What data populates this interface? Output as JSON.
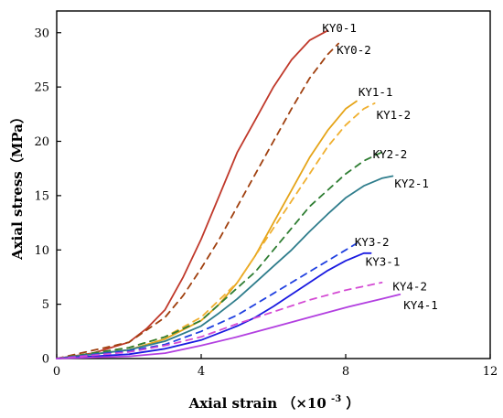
{
  "chart_data": {
    "type": "line",
    "xlabel": "Axial strain",
    "xlabel_unit": "（×10",
    "xlabel_exp": "-3",
    "xlabel_close": "）",
    "ylabel": "Axial stress（MPa）",
    "xlim": [
      0,
      12
    ],
    "ylim": [
      0,
      32
    ],
    "xticks": [
      0,
      4,
      8,
      12
    ],
    "yticks": [
      0,
      5,
      10,
      15,
      20,
      25,
      30
    ],
    "grid": false,
    "legend": "labels at line ends",
    "series": [
      {
        "name": "KY0-1",
        "color": "#c0392b",
        "dash": false,
        "x": [
          0,
          1,
          2,
          2.5,
          3,
          3.5,
          4,
          4.5,
          5,
          5.5,
          6,
          6.5,
          7,
          7.5
        ],
        "y": [
          0,
          0.5,
          1.5,
          2.8,
          4.5,
          7.5,
          11,
          15,
          19,
          22,
          25,
          27.5,
          29.3,
          30.2
        ]
      },
      {
        "name": "KY0-2",
        "color": "#a0400f",
        "dash": true,
        "x": [
          0,
          2,
          3,
          3.5,
          4,
          4.5,
          5,
          5.5,
          6,
          6.5,
          7,
          7.5,
          7.8
        ],
        "y": [
          0,
          1.5,
          3.8,
          5.8,
          8.3,
          11,
          14,
          17,
          20,
          23,
          25.8,
          28,
          29
        ]
      },
      {
        "name": "KY1-1",
        "color": "#e5a418",
        "dash": false,
        "x": [
          0,
          2,
          3,
          4,
          4.5,
          5,
          5.5,
          6,
          6.5,
          7,
          7.5,
          8,
          8.3
        ],
        "y": [
          0,
          0.8,
          1.8,
          3.5,
          5,
          7,
          9.5,
          12.5,
          15.5,
          18.5,
          21,
          23,
          23.7
        ]
      },
      {
        "name": "KY1-2",
        "color": "#f0b030",
        "dash": true,
        "x": [
          0,
          2,
          3,
          4,
          5,
          5.5,
          6,
          6.5,
          7,
          7.5,
          8,
          8.5,
          8.8
        ],
        "y": [
          0,
          1,
          2,
          3.8,
          7,
          9.5,
          12,
          14.5,
          17,
          19.5,
          21.5,
          23,
          23.5
        ]
      },
      {
        "name": "KY2-2",
        "color": "#2e7d32",
        "dash": true,
        "x": [
          0,
          2,
          3,
          4,
          5,
          5.5,
          6,
          6.5,
          7,
          7.5,
          8,
          8.5,
          9
        ],
        "y": [
          0,
          1,
          2,
          3.5,
          6.5,
          8,
          10,
          12,
          14,
          15.5,
          17,
          18.2,
          19
        ]
      },
      {
        "name": "KY2-1",
        "color": "#2f7d8c",
        "dash": false,
        "x": [
          0,
          2,
          3,
          4,
          4.5,
          5,
          5.5,
          6,
          6.5,
          7,
          7.5,
          8,
          8.5,
          9,
          9.3
        ],
        "y": [
          0,
          0.8,
          1.6,
          3,
          4.2,
          5.5,
          7,
          8.5,
          10,
          11.7,
          13.3,
          14.8,
          15.9,
          16.6,
          16.8
        ]
      },
      {
        "name": "KY3-2",
        "color": "#2040e0",
        "dash": true,
        "x": [
          0,
          2,
          3,
          4,
          5,
          5.5,
          6,
          6.5,
          7,
          7.5,
          8,
          8.3
        ],
        "y": [
          0,
          0.7,
          1.3,
          2.5,
          4,
          5,
          6,
          7,
          8,
          9,
          10,
          10.6
        ]
      },
      {
        "name": "KY3-1",
        "color": "#1a1ae0",
        "dash": false,
        "x": [
          0,
          2,
          3,
          4,
          5,
          5.5,
          6,
          6.5,
          7,
          7.5,
          8,
          8.5,
          8.7
        ],
        "y": [
          0,
          0.4,
          0.9,
          1.7,
          3,
          3.8,
          4.8,
          5.9,
          7,
          8.1,
          9,
          9.7,
          9.7
        ]
      },
      {
        "name": "KY4-2",
        "color": "#d44bd4",
        "dash": true,
        "x": [
          0,
          2,
          3,
          4,
          5,
          6,
          7,
          8,
          9
        ],
        "y": [
          0,
          0.6,
          1.2,
          2,
          3.2,
          4.3,
          5.4,
          6.3,
          7
        ]
      },
      {
        "name": "KY4-1",
        "color": "#b23fe0",
        "dash": false,
        "x": [
          0,
          2,
          3,
          4,
          5,
          6,
          7,
          8,
          9,
          9.5
        ],
        "y": [
          0,
          0.2,
          0.5,
          1.2,
          2,
          2.9,
          3.8,
          4.7,
          5.5,
          5.9
        ]
      }
    ],
    "labels": [
      {
        "text": "KY0-1",
        "x": 7.35,
        "y": 30.4
      },
      {
        "text": "KY0-2",
        "x": 7.75,
        "y": 28.4
      },
      {
        "text": "KY1-1",
        "x": 8.35,
        "y": 24.5
      },
      {
        "text": "KY1-2",
        "x": 8.85,
        "y": 22.4
      },
      {
        "text": "KY2-2",
        "x": 8.75,
        "y": 18.8
      },
      {
        "text": "KY2-1",
        "x": 9.35,
        "y": 16.1
      },
      {
        "text": "KY3-2",
        "x": 8.25,
        "y": 10.7
      },
      {
        "text": "KY3-1",
        "x": 8.55,
        "y": 8.9
      },
      {
        "text": "KY4-2",
        "x": 9.3,
        "y": 6.6
      },
      {
        "text": "KY4-1",
        "x": 9.6,
        "y": 4.9
      }
    ]
  }
}
